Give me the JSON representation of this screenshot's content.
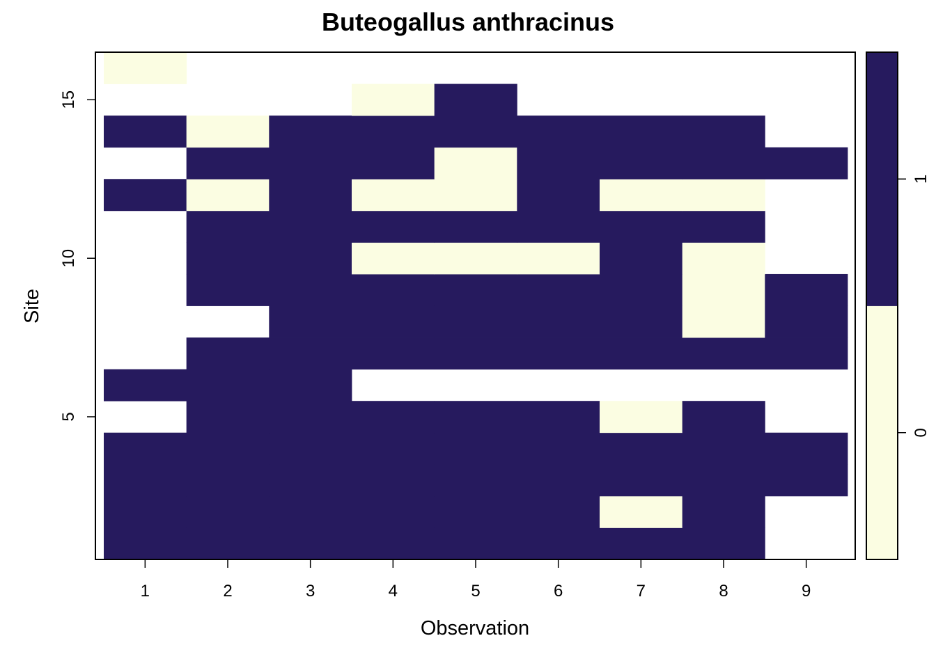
{
  "chart_data": {
    "type": "heatmap",
    "title": "Buteogallus anthracinus",
    "xlabel": "Observation",
    "ylabel": "Site",
    "x_values": [
      1,
      2,
      3,
      4,
      5,
      6,
      7,
      8,
      9
    ],
    "x_tick_labels": [
      "1",
      "2",
      "3",
      "4",
      "5",
      "6",
      "7",
      "8",
      "9"
    ],
    "y_values": [
      1,
      2,
      3,
      4,
      5,
      6,
      7,
      8,
      9,
      10,
      11,
      12,
      13,
      14,
      15,
      16
    ],
    "y_tick_values": [
      5,
      10,
      15
    ],
    "y_tick_labels": [
      "5",
      "10",
      "15"
    ],
    "xlim": [
      0.5,
      9.5
    ],
    "ylim": [
      0.5,
      16.5
    ],
    "missing_value_note": "null = no observation (blank cell)",
    "rows": [
      {
        "site": 1,
        "values": [
          1,
          1,
          1,
          1,
          1,
          1,
          1,
          1,
          null
        ]
      },
      {
        "site": 2,
        "values": [
          1,
          1,
          1,
          1,
          1,
          1,
          0,
          1,
          null
        ]
      },
      {
        "site": 3,
        "values": [
          1,
          1,
          1,
          1,
          1,
          1,
          1,
          1,
          1
        ]
      },
      {
        "site": 4,
        "values": [
          1,
          1,
          1,
          1,
          1,
          1,
          1,
          1,
          1
        ]
      },
      {
        "site": 5,
        "values": [
          null,
          1,
          1,
          1,
          1,
          1,
          0,
          1,
          null
        ]
      },
      {
        "site": 6,
        "values": [
          1,
          1,
          1,
          null,
          null,
          null,
          null,
          null,
          null
        ]
      },
      {
        "site": 7,
        "values": [
          null,
          1,
          1,
          1,
          1,
          1,
          1,
          1,
          1
        ]
      },
      {
        "site": 8,
        "values": [
          null,
          null,
          1,
          1,
          1,
          1,
          1,
          0,
          1
        ]
      },
      {
        "site": 9,
        "values": [
          null,
          1,
          1,
          1,
          1,
          1,
          1,
          0,
          1
        ]
      },
      {
        "site": 10,
        "values": [
          null,
          1,
          1,
          0,
          0,
          0,
          1,
          0,
          null
        ]
      },
      {
        "site": 11,
        "values": [
          null,
          1,
          1,
          1,
          1,
          1,
          1,
          1,
          null
        ]
      },
      {
        "site": 12,
        "values": [
          1,
          0,
          1,
          0,
          0,
          1,
          0,
          0,
          null
        ]
      },
      {
        "site": 13,
        "values": [
          null,
          1,
          1,
          1,
          0,
          1,
          1,
          1,
          1
        ]
      },
      {
        "site": 14,
        "values": [
          1,
          0,
          1,
          1,
          1,
          1,
          1,
          1,
          null
        ]
      },
      {
        "site": 15,
        "values": [
          null,
          null,
          null,
          0,
          1,
          null,
          null,
          null,
          null
        ]
      },
      {
        "site": 16,
        "values": [
          0,
          null,
          null,
          null,
          null,
          null,
          null,
          null,
          null
        ]
      }
    ],
    "legend": {
      "position": "right",
      "tick_labels": [
        "0",
        "1"
      ],
      "categories": [
        {
          "value": 0,
          "label": "0",
          "color": "#FBFDE2"
        },
        {
          "value": 1,
          "label": "1",
          "color": "#261A5E"
        }
      ]
    },
    "colors": {
      "absent": "#FBFDE2",
      "present": "#261A5E",
      "frame": "#000000"
    }
  }
}
